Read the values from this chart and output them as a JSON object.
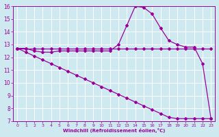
{
  "xlabel": "Windchill (Refroidissement éolien,°C)",
  "background_color": "#cfe9f0",
  "line_color": "#990099",
  "grid_color": "#ffffff",
  "xlim": [
    -0.5,
    23.5
  ],
  "ylim": [
    7,
    16
  ],
  "xticks": [
    0,
    1,
    2,
    3,
    4,
    5,
    6,
    7,
    8,
    9,
    10,
    11,
    12,
    13,
    14,
    15,
    16,
    17,
    18,
    19,
    20,
    21,
    22,
    23
  ],
  "yticks": [
    7,
    8,
    9,
    10,
    11,
    12,
    13,
    14,
    15,
    16
  ],
  "curve_flat_x": [
    0,
    1,
    2,
    3,
    4,
    5,
    6,
    7,
    8,
    9,
    10,
    11,
    12,
    13,
    14,
    15,
    16,
    17,
    18,
    19,
    20,
    21,
    22,
    23
  ],
  "curve_flat_y": [
    12.7,
    12.7,
    12.7,
    12.7,
    12.7,
    12.7,
    12.7,
    12.7,
    12.7,
    12.7,
    12.7,
    12.7,
    12.7,
    12.7,
    12.7,
    12.7,
    12.7,
    12.7,
    12.7,
    12.7,
    12.7,
    12.7,
    12.7,
    12.7
  ],
  "curve_peak_x": [
    0,
    1,
    2,
    3,
    4,
    5,
    6,
    7,
    8,
    9,
    10,
    11,
    12,
    13,
    14,
    15,
    16,
    17,
    18,
    19,
    20,
    21,
    22,
    23
  ],
  "curve_peak_y": [
    12.7,
    12.7,
    12.5,
    12.4,
    12.4,
    12.5,
    12.5,
    12.5,
    12.5,
    12.5,
    12.5,
    12.5,
    13.0,
    14.5,
    16.0,
    15.9,
    15.4,
    14.3,
    13.3,
    13.0,
    12.8,
    12.8,
    11.5,
    7.2
  ],
  "curve_diag_x": [
    0,
    1,
    2,
    3,
    4,
    5,
    6,
    7,
    8,
    9,
    10,
    11,
    12,
    13,
    14,
    15,
    16,
    17,
    18,
    19,
    20,
    21,
    22,
    23
  ],
  "curve_diag_y": [
    12.7,
    12.4,
    12.1,
    11.8,
    11.5,
    11.2,
    10.9,
    10.6,
    10.3,
    10.0,
    9.7,
    9.4,
    9.1,
    8.8,
    8.5,
    8.2,
    7.9,
    7.6,
    7.3,
    7.2,
    7.2,
    7.2,
    7.2,
    7.2
  ]
}
